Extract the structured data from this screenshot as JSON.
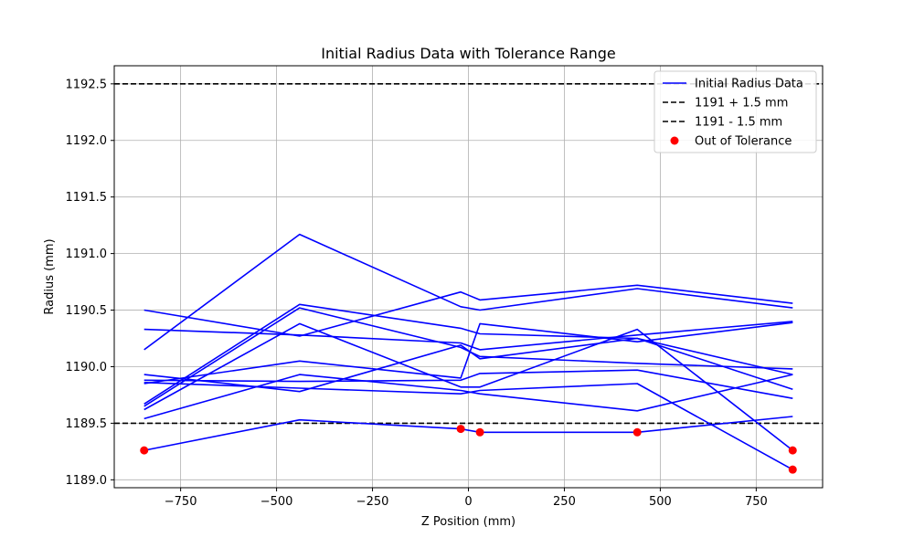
{
  "chart_data": {
    "type": "line",
    "title": "Initial Radius Data with Tolerance Range",
    "xlabel": "Z Position (mm)",
    "ylabel": "Radius (mm)",
    "xlim": [
      -923,
      923
    ],
    "ylim": [
      1188.93,
      1192.66
    ],
    "grid": true,
    "legend_position": "top-right",
    "x_ticks": [
      -750,
      -500,
      -250,
      0,
      250,
      500,
      750
    ],
    "x_tick_labels": [
      "−750",
      "−500",
      "−250",
      "0",
      "250",
      "500",
      "750"
    ],
    "y_ticks": [
      1189.0,
      1189.5,
      1190.0,
      1190.5,
      1191.0,
      1191.5,
      1192.0,
      1192.5
    ],
    "y_tick_labels": [
      "1189.0",
      "1189.5",
      "1190.0",
      "1190.5",
      "1191.0",
      "1191.5",
      "1192.0",
      "1192.5"
    ],
    "colors": {
      "data": "#0000ff",
      "tolerance": "#000000",
      "outlier": "#ff0000",
      "grid": "#b0b0b0"
    },
    "x": [
      -845,
      -440,
      -20,
      30,
      440,
      845
    ],
    "series": [
      {
        "values": [
          1190.5,
          1190.27,
          1190.66,
          1190.59,
          1190.72,
          1190.56
        ]
      },
      {
        "values": [
          1190.15,
          1191.17,
          1190.53,
          1190.5,
          1190.69,
          1190.52
        ]
      },
      {
        "values": [
          1190.33,
          1190.28,
          1190.21,
          1190.15,
          1190.28,
          1190.4
        ]
      },
      {
        "values": [
          1189.67,
          1190.55,
          1190.34,
          1190.29,
          1190.25,
          1189.93
        ]
      },
      {
        "values": [
          1189.65,
          1190.52,
          1190.17,
          1190.09,
          1190.03,
          1189.98
        ]
      },
      {
        "values": [
          1189.62,
          1190.38,
          1189.82,
          1189.82,
          1190.33,
          1189.26
        ]
      },
      {
        "values": [
          1189.85,
          1190.05,
          1189.9,
          1190.38,
          1190.22,
          1190.39
        ]
      },
      {
        "values": [
          1189.93,
          1189.78,
          1190.19,
          1190.07,
          1190.25,
          1189.8
        ]
      },
      {
        "values": [
          1189.88,
          1189.87,
          1189.88,
          1189.94,
          1189.97,
          1189.72
        ]
      },
      {
        "values": [
          1189.86,
          1189.81,
          1189.76,
          1189.79,
          1189.85,
          1189.09
        ]
      },
      {
        "values": [
          1189.54,
          1189.93,
          1189.79,
          1189.76,
          1189.61,
          1189.93
        ]
      },
      {
        "values": [
          1189.26,
          1189.53,
          1189.45,
          1189.42,
          1189.42,
          1189.56
        ]
      }
    ],
    "tolerance_lines": [
      {
        "name": "1191 + 1.5 mm",
        "value": 1192.5
      },
      {
        "name": "1191 - 1.5 mm",
        "value": 1189.5
      }
    ],
    "out_of_tolerance": {
      "name": "Out of Tolerance",
      "points": [
        {
          "x": -845,
          "y": 1189.26
        },
        {
          "x": -20,
          "y": 1189.45
        },
        {
          "x": 30,
          "y": 1189.42
        },
        {
          "x": 440,
          "y": 1189.42
        },
        {
          "x": 845,
          "y": 1189.26
        },
        {
          "x": 845,
          "y": 1189.09
        }
      ]
    },
    "legend": [
      {
        "label": "Initial Radius Data",
        "kind": "line",
        "style": "solid",
        "color": "#0000ff"
      },
      {
        "label": "1191 + 1.5 mm",
        "kind": "line",
        "style": "dashed",
        "color": "#000000"
      },
      {
        "label": "1191 - 1.5 mm",
        "kind": "line",
        "style": "dashed",
        "color": "#000000"
      },
      {
        "label": "Out of Tolerance",
        "kind": "marker",
        "color": "#ff0000"
      }
    ]
  }
}
